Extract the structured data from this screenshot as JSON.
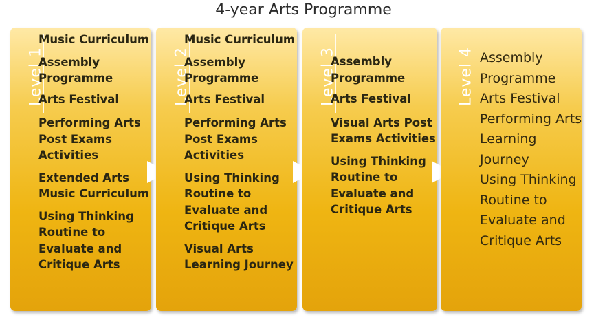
{
  "title": "4-year Arts Programme",
  "colors": {
    "card_top": "#ffe9a6",
    "card_bottom": "#e4a30b",
    "arrow": "#ffffff",
    "level_text": "#ffffff"
  },
  "levels": [
    {
      "label": "Level 1",
      "items": [
        "Music Curriculum",
        "Assembly Programme",
        "Arts Festival",
        "Performing Arts Post Exams Activities",
        "Extended Arts Music Curriculum",
        "Using Thinking Routine to Evaluate and Critique Arts"
      ]
    },
    {
      "label": "Level 2",
      "items": [
        "Music Curriculum",
        "Assembly Programme",
        "Arts Festival",
        "Performing Arts Post Exams Activities",
        "Using Thinking Routine to Evaluate and Critique Arts",
        "Visual Arts Learning Journey"
      ]
    },
    {
      "label": "Level 3",
      "items": [
        "Assembly Programme",
        "Arts Festival",
        "Visual Arts Post Exams Activities",
        "Using Thinking Routine to Evaluate and Critique Arts"
      ]
    },
    {
      "label": "Level 4",
      "items": [
        "Assembly Programme",
        "Arts Festival",
        "Performing Arts Learning Journey",
        "Using Thinking Routine to Evaluate and Critique Arts"
      ]
    }
  ],
  "arrow_icon": "triangle-right-icon"
}
